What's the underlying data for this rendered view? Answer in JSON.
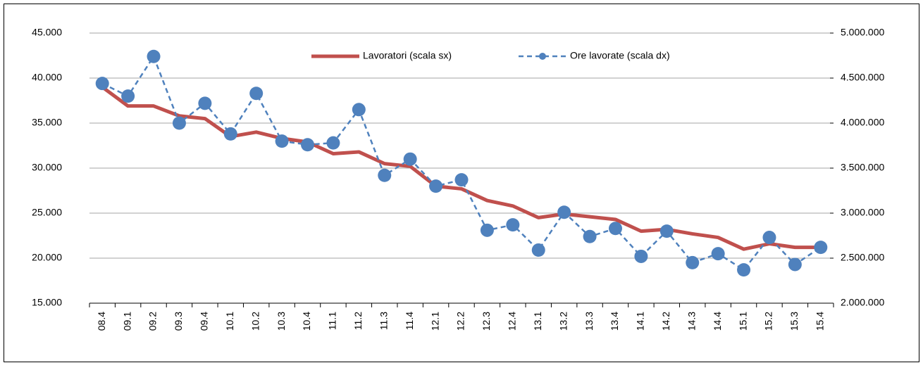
{
  "chart_data": {
    "type": "line",
    "categories": [
      "08.4",
      "09.1",
      "09.2",
      "09.3",
      "09.4",
      "10.1",
      "10.2",
      "10.3",
      "10.4",
      "11.1",
      "11.2",
      "11.3",
      "11.4",
      "12.1",
      "12.2",
      "12.3",
      "12.4",
      "13.1",
      "13.2",
      "13.3",
      "13.4",
      "14.1",
      "14.2",
      "14.3",
      "14.4",
      "15.1",
      "15.2",
      "15.3",
      "15.4"
    ],
    "series": [
      {
        "name": "Lavoratori (scala sx)",
        "color": "#c0504d",
        "style": "solid",
        "values": [
          39000,
          36900,
          36900,
          35800,
          35500,
          33500,
          34000,
          33300,
          32900,
          31600,
          31800,
          30500,
          30200,
          28000,
          27700,
          26400,
          25800,
          24500,
          24900,
          24600,
          24300,
          23000,
          23200,
          22700,
          22300,
          21000,
          21600,
          21200,
          21200
        ]
      },
      {
        "name": "Ore lavorate (scala dx)",
        "color": "#4f81bd",
        "style": "dashed",
        "axis": "y2",
        "values": [
          4440000,
          4300000,
          4740000,
          4000000,
          4220000,
          3880000,
          4330000,
          3800000,
          3760000,
          3780000,
          4150000,
          3420000,
          3600000,
          3300000,
          3370000,
          2810000,
          2870000,
          2590000,
          3010000,
          2740000,
          2830000,
          2520000,
          2800000,
          2450000,
          2550000,
          2370000,
          2730000,
          2430000,
          2620000
        ]
      }
    ],
    "ylim": [
      15000,
      45000
    ],
    "yticks": [
      {
        "value": 15000,
        "label": "15.000"
      },
      {
        "value": 20000,
        "label": "20.000"
      },
      {
        "value": 25000,
        "label": "25.000"
      },
      {
        "value": 30000,
        "label": "30.000"
      },
      {
        "value": 35000,
        "label": "35.000"
      },
      {
        "value": 40000,
        "label": "40.000"
      },
      {
        "value": 45000,
        "label": "45.000"
      }
    ],
    "y2lim": [
      2000000,
      5000000
    ],
    "y2ticks": [
      {
        "value": 2000000,
        "label": "2.000.000"
      },
      {
        "value": 2500000,
        "label": "2.500.000"
      },
      {
        "value": 3000000,
        "label": "3.000.000"
      },
      {
        "value": 3500000,
        "label": "3.500.000"
      },
      {
        "value": 4000000,
        "label": "4.000.000"
      },
      {
        "value": 4500000,
        "label": "4.500.000"
      },
      {
        "value": 5000000,
        "label": "5.000.000"
      }
    ],
    "grid": true,
    "legend": "top"
  }
}
